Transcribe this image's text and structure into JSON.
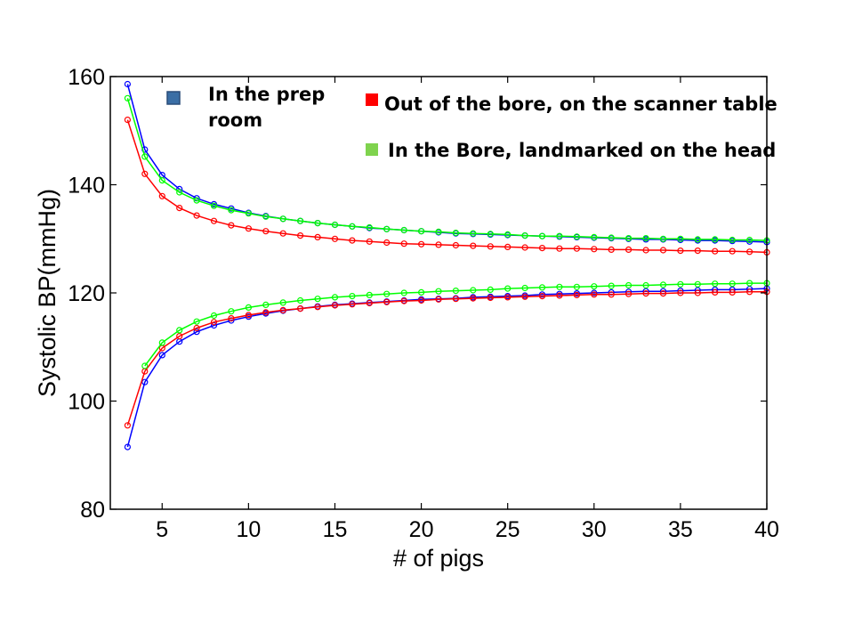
{
  "chart_data": {
    "type": "line",
    "title": "",
    "xlabel": "# of pigs",
    "ylabel": "Systolic BP(mmHg)",
    "xlim": [
      2,
      40
    ],
    "ylim": [
      80,
      160
    ],
    "xticks": [
      5,
      10,
      15,
      20,
      25,
      30,
      35,
      40
    ],
    "yticks": [
      80,
      100,
      120,
      140,
      160
    ],
    "grid": false,
    "legend_placement": "top",
    "legend": [
      {
        "label": "In the prep room",
        "lines": [
          "In the prep",
          "room"
        ],
        "color": "#3a6ea5"
      },
      {
        "label": "Out of the bore, on the scanner table",
        "lines": [
          "Out of the bore, on the scanner table"
        ],
        "color": "#ff0000"
      },
      {
        "label": "In the Bore, landmarked on the head",
        "lines": [
          "In the Bore, landmarked on the head"
        ],
        "color": "#7fd34e"
      }
    ],
    "x": [
      3,
      4,
      5,
      6,
      7,
      8,
      9,
      10,
      11,
      12,
      13,
      14,
      15,
      16,
      17,
      18,
      19,
      20,
      21,
      22,
      23,
      24,
      25,
      26,
      27,
      28,
      29,
      30,
      31,
      32,
      33,
      34,
      35,
      36,
      37,
      38,
      39,
      40
    ],
    "series": [
      {
        "group": "In the prep room",
        "bound": "upper",
        "color": "#0000ff",
        "values": [
          158.6,
          146.5,
          141.8,
          139.2,
          137.5,
          136.4,
          135.6,
          134.8,
          134.2,
          133.7,
          133.3,
          132.9,
          132.6,
          132.3,
          132.0,
          131.8,
          131.6,
          131.4,
          131.2,
          131.0,
          130.9,
          130.8,
          130.7,
          130.6,
          130.5,
          130.4,
          130.3,
          130.2,
          130.1,
          130.0,
          129.9,
          129.9,
          129.8,
          129.7,
          129.7,
          129.6,
          129.5,
          129.4
        ]
      },
      {
        "group": "Out of the bore, on the scanner table",
        "bound": "upper",
        "color": "#ff0000",
        "values": [
          152.0,
          142.0,
          137.9,
          135.7,
          134.3,
          133.3,
          132.5,
          131.9,
          131.4,
          131.0,
          130.6,
          130.3,
          130.0,
          129.7,
          129.5,
          129.3,
          129.1,
          129.0,
          128.9,
          128.8,
          128.7,
          128.6,
          128.5,
          128.4,
          128.3,
          128.2,
          128.2,
          128.1,
          128.0,
          128.0,
          127.9,
          127.9,
          127.8,
          127.8,
          127.7,
          127.7,
          127.6,
          127.5
        ]
      },
      {
        "group": "In the Bore, landmarked on the head",
        "bound": "upper",
        "color": "#00ff00",
        "values": [
          156.0,
          145.2,
          140.8,
          138.6,
          137.1,
          136.1,
          135.3,
          134.7,
          134.1,
          133.7,
          133.3,
          132.9,
          132.6,
          132.3,
          132.1,
          131.8,
          131.6,
          131.4,
          131.3,
          131.1,
          131.0,
          130.9,
          130.8,
          130.6,
          130.5,
          130.5,
          130.4,
          130.3,
          130.2,
          130.1,
          130.1,
          130.0,
          130.0,
          129.9,
          129.9,
          129.8,
          129.8,
          129.7
        ]
      },
      {
        "group": "In the prep room",
        "bound": "lower",
        "color": "#0000ff",
        "values": [
          91.5,
          103.5,
          108.5,
          111.0,
          112.8,
          114.0,
          114.9,
          115.6,
          116.2,
          116.7,
          117.1,
          117.5,
          117.8,
          118.0,
          118.2,
          118.4,
          118.6,
          118.8,
          118.9,
          119.0,
          119.2,
          119.3,
          119.4,
          119.5,
          119.7,
          119.8,
          119.9,
          120.0,
          120.1,
          120.2,
          120.3,
          120.3,
          120.4,
          120.5,
          120.6,
          120.6,
          120.7,
          120.8
        ]
      },
      {
        "group": "Out of the bore, on the scanner table",
        "bound": "lower",
        "color": "#ff0000",
        "values": [
          95.5,
          105.5,
          109.8,
          112.0,
          113.5,
          114.6,
          115.3,
          115.9,
          116.4,
          116.8,
          117.1,
          117.4,
          117.7,
          117.9,
          118.1,
          118.3,
          118.5,
          118.6,
          118.8,
          118.9,
          119.0,
          119.1,
          119.2,
          119.3,
          119.4,
          119.5,
          119.6,
          119.7,
          119.7,
          119.8,
          119.9,
          119.9,
          120.0,
          120.0,
          120.1,
          120.1,
          120.2,
          120.2
        ]
      },
      {
        "group": "In the Bore, landmarked on the head",
        "bound": "lower",
        "color": "#00ff00",
        "values": [
          null,
          106.5,
          110.8,
          113.1,
          114.7,
          115.8,
          116.6,
          117.3,
          117.8,
          118.2,
          118.6,
          118.9,
          119.2,
          119.4,
          119.6,
          119.8,
          120.0,
          120.1,
          120.3,
          120.4,
          120.5,
          120.6,
          120.8,
          120.9,
          121.0,
          121.1,
          121.1,
          121.2,
          121.3,
          121.4,
          121.4,
          121.5,
          121.6,
          121.6,
          121.7,
          121.7,
          121.8,
          121.8
        ]
      }
    ]
  }
}
